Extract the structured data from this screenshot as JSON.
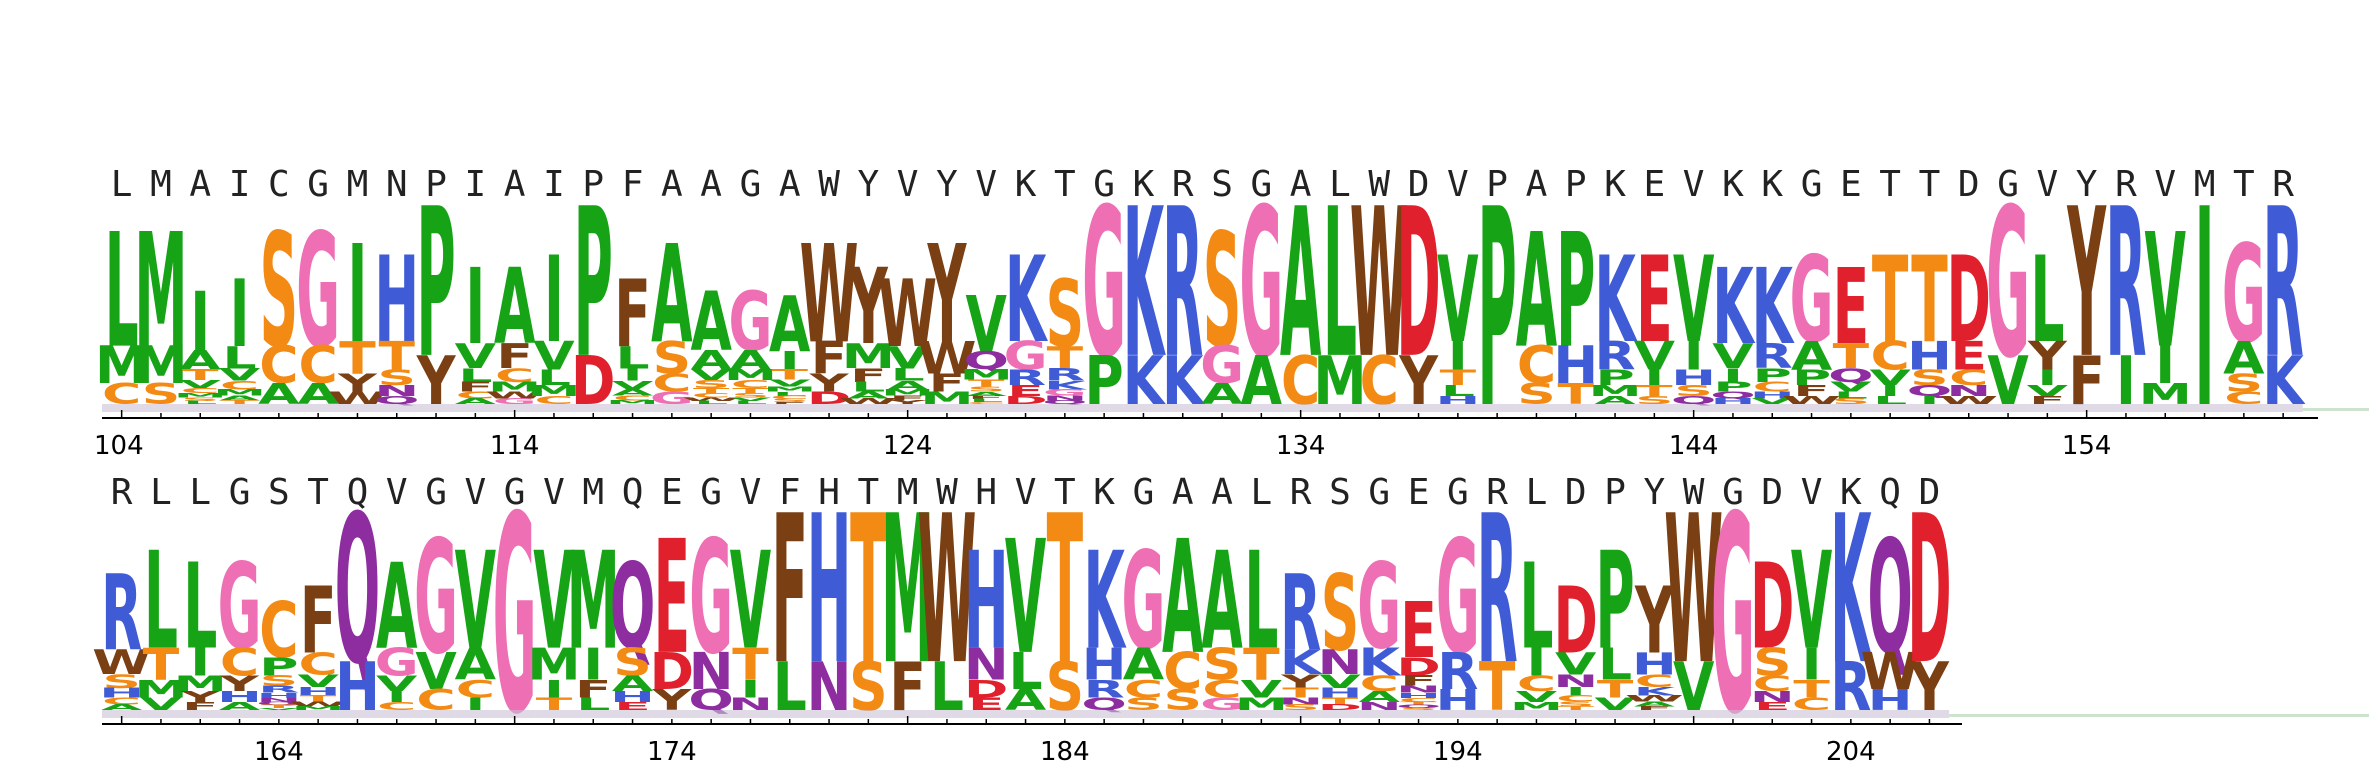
{
  "colors": {
    "G": "#EE6FB3",
    "S": "#F28A14",
    "T": "#F28A14",
    "C": "#F28A14",
    "N": "#8E2DA0",
    "Q": "#8E2DA0",
    "K": "#3F5BD6",
    "R": "#3F5BD6",
    "H": "#3F5BD6",
    "D": "#E0202C",
    "E": "#E0202C",
    "A": "#16A416",
    "V": "#16A416",
    "L": "#16A416",
    "I": "#16A416",
    "M": "#16A416",
    "P": "#16A416",
    "F": "#7A3F12",
    "W": "#7A3F12",
    "Y": "#7A3F12"
  },
  "rows": [
    {
      "start": 104,
      "tick_labels": [
        "104",
        "114",
        "124",
        "134",
        "144",
        "154"
      ],
      "consensus": "LMAICGMNPIAIPFAAGAWYVYVKTGKRSGALWDVPAPKEVKKGETTDGVYRVMTR",
      "stacks": [
        [
          "L",
          "M",
          "C"
        ],
        [
          "M",
          "M",
          "S"
        ],
        [
          "I",
          "A",
          "T",
          "V",
          "C",
          "M",
          "S",
          "L"
        ],
        [
          "I",
          "L",
          "V",
          "C",
          "M",
          "A",
          "T"
        ],
        [
          "S",
          "C",
          "A"
        ],
        [
          "G",
          "C",
          "A"
        ],
        [
          "I",
          "T",
          "Y",
          "W"
        ],
        [
          "H",
          "T",
          "S",
          "N",
          "Q"
        ],
        [
          "P",
          "Y"
        ],
        [
          "I",
          "V",
          "L",
          "F",
          "C",
          "A"
        ],
        [
          "A",
          "F",
          "C",
          "M",
          "W",
          "G"
        ],
        [
          "I",
          "V",
          "L",
          "M",
          "C"
        ],
        [
          "P",
          "D"
        ],
        [
          "F",
          "L",
          "I",
          "V",
          "A",
          "C",
          "M"
        ],
        [
          "A",
          "S",
          "C",
          "G"
        ],
        [
          "A",
          "A",
          "V",
          "S",
          "T",
          "C",
          "W",
          "L"
        ],
        [
          "G",
          "A",
          "M",
          "C",
          "T",
          "S",
          "V",
          "L"
        ],
        [
          "A",
          "I",
          "T",
          "V",
          "M",
          "L",
          "C",
          "S",
          "F"
        ],
        [
          "W",
          "F",
          "Y",
          "D"
        ],
        [
          "Y",
          "M",
          "F",
          "L",
          "A",
          "W"
        ],
        [
          "W",
          "V",
          "L",
          "A",
          "M",
          "F",
          "Y"
        ],
        [
          "Y",
          "W",
          "F",
          "M"
        ],
        [
          "V",
          "Q",
          "M",
          "T",
          "S",
          "A",
          "F",
          "L",
          "C"
        ],
        [
          "K",
          "G",
          "R",
          "E",
          "D"
        ],
        [
          "S",
          "T",
          "R",
          "K",
          "G",
          "N",
          "Q"
        ],
        [
          "G",
          "P"
        ],
        [
          "K",
          "K"
        ],
        [
          "R",
          "K"
        ],
        [
          "S",
          "G",
          "A"
        ],
        [
          "G",
          "A"
        ],
        [
          "A",
          "C"
        ],
        [
          "L",
          "M"
        ],
        [
          "W",
          "C"
        ],
        [
          "D",
          "Y"
        ],
        [
          "V",
          "I",
          "T",
          "L",
          "H"
        ],
        [
          "P"
        ],
        [
          "A",
          "C",
          "S"
        ],
        [
          "P",
          "H",
          "T"
        ],
        [
          "K",
          "R",
          "P",
          "M",
          "A"
        ],
        [
          "E",
          "V",
          "I",
          "T",
          "S"
        ],
        [
          "V",
          "I",
          "H",
          "S",
          "Q"
        ],
        [
          "K",
          "V",
          "I",
          "P",
          "Q",
          "H"
        ],
        [
          "K",
          "R",
          "P",
          "C",
          "H",
          "V"
        ],
        [
          "G",
          "A",
          "P",
          "F",
          "W"
        ],
        [
          "E",
          "T",
          "Q",
          "V",
          "L",
          "S"
        ],
        [
          "T",
          "C",
          "V",
          "I",
          "L"
        ],
        [
          "T",
          "H",
          "S",
          "Q",
          "I"
        ],
        [
          "D",
          "E",
          "C",
          "N",
          "W"
        ],
        [
          "G",
          "V"
        ],
        [
          "L",
          "Y",
          "I",
          "V",
          "F"
        ],
        [
          "Y",
          "F"
        ],
        [
          "R",
          "I"
        ],
        [
          "V",
          "I",
          "M"
        ],
        [
          "I"
        ],
        [
          "G",
          "A",
          "S",
          "C"
        ],
        [
          "R",
          "K"
        ]
      ]
    },
    {
      "start": 160,
      "tick_labels": [
        "164",
        "174",
        "184",
        "194",
        "204"
      ],
      "consensus": "RLLGSTQVGVGVMQEGVFHTMWHVTKGAALRSGEGRLDPYWGDVKQD",
      "stacks": [
        [
          "R",
          "W",
          "S",
          "H",
          "C",
          "A"
        ],
        [
          "L",
          "T",
          "M",
          "V"
        ],
        [
          "L",
          "I",
          "M",
          "Y",
          "F"
        ],
        [
          "G",
          "C",
          "Y",
          "H",
          "A"
        ],
        [
          "C",
          "P",
          "S",
          "R",
          "H",
          "N",
          "Q",
          "T",
          "V"
        ],
        [
          "F",
          "C",
          "V",
          "H",
          "T",
          "W",
          "M"
        ],
        [
          "Q",
          "H"
        ],
        [
          "A",
          "G",
          "V",
          "I",
          "C"
        ],
        [
          "G",
          "V",
          "C"
        ],
        [
          "V",
          "A",
          "C",
          "I"
        ],
        [
          "G"
        ],
        [
          "V",
          "M",
          "I",
          "T"
        ],
        [
          "M",
          "I",
          "F",
          "L"
        ],
        [
          "Q",
          "S",
          "A",
          "H",
          "E"
        ],
        [
          "E",
          "D",
          "Y"
        ],
        [
          "G",
          "N",
          "Q"
        ],
        [
          "V",
          "T",
          "I",
          "N"
        ],
        [
          "F",
          "L"
        ],
        [
          "H",
          "N"
        ],
        [
          "T",
          "S"
        ],
        [
          "M",
          "F"
        ],
        [
          "W",
          "L"
        ],
        [
          "H",
          "N",
          "D",
          "E"
        ],
        [
          "V",
          "L",
          "A"
        ],
        [
          "T",
          "S"
        ],
        [
          "K",
          "H",
          "R",
          "Q"
        ],
        [
          "G",
          "A",
          "C",
          "S"
        ],
        [
          "A",
          "C",
          "S"
        ],
        [
          "A",
          "S",
          "C",
          "G"
        ],
        [
          "L",
          "T",
          "V",
          "M"
        ],
        [
          "R",
          "K",
          "Y",
          "T",
          "N",
          "S"
        ],
        [
          "S",
          "N",
          "V",
          "H",
          "T",
          "D"
        ],
        [
          "G",
          "K",
          "C",
          "A",
          "N"
        ],
        [
          "E",
          "D",
          "F",
          "N",
          "H",
          "C",
          "T",
          "Q",
          "S"
        ],
        [
          "G",
          "R",
          "H"
        ],
        [
          "R",
          "T"
        ],
        [
          "L",
          "I",
          "C",
          "V",
          "M"
        ],
        [
          "D",
          "V",
          "N",
          "I",
          "C",
          "S",
          "T"
        ],
        [
          "P",
          "L",
          "T",
          "V"
        ],
        [
          "Y",
          "H",
          "C",
          "K",
          "W",
          "A",
          "F"
        ],
        [
          "W",
          "V"
        ],
        [
          "G"
        ],
        [
          "D",
          "S",
          "C",
          "N",
          "E"
        ],
        [
          "V",
          "I",
          "T",
          "C"
        ],
        [
          "K",
          "R"
        ],
        [
          "Q",
          "W",
          "H"
        ],
        [
          "D",
          "Y"
        ]
      ]
    }
  ]
}
